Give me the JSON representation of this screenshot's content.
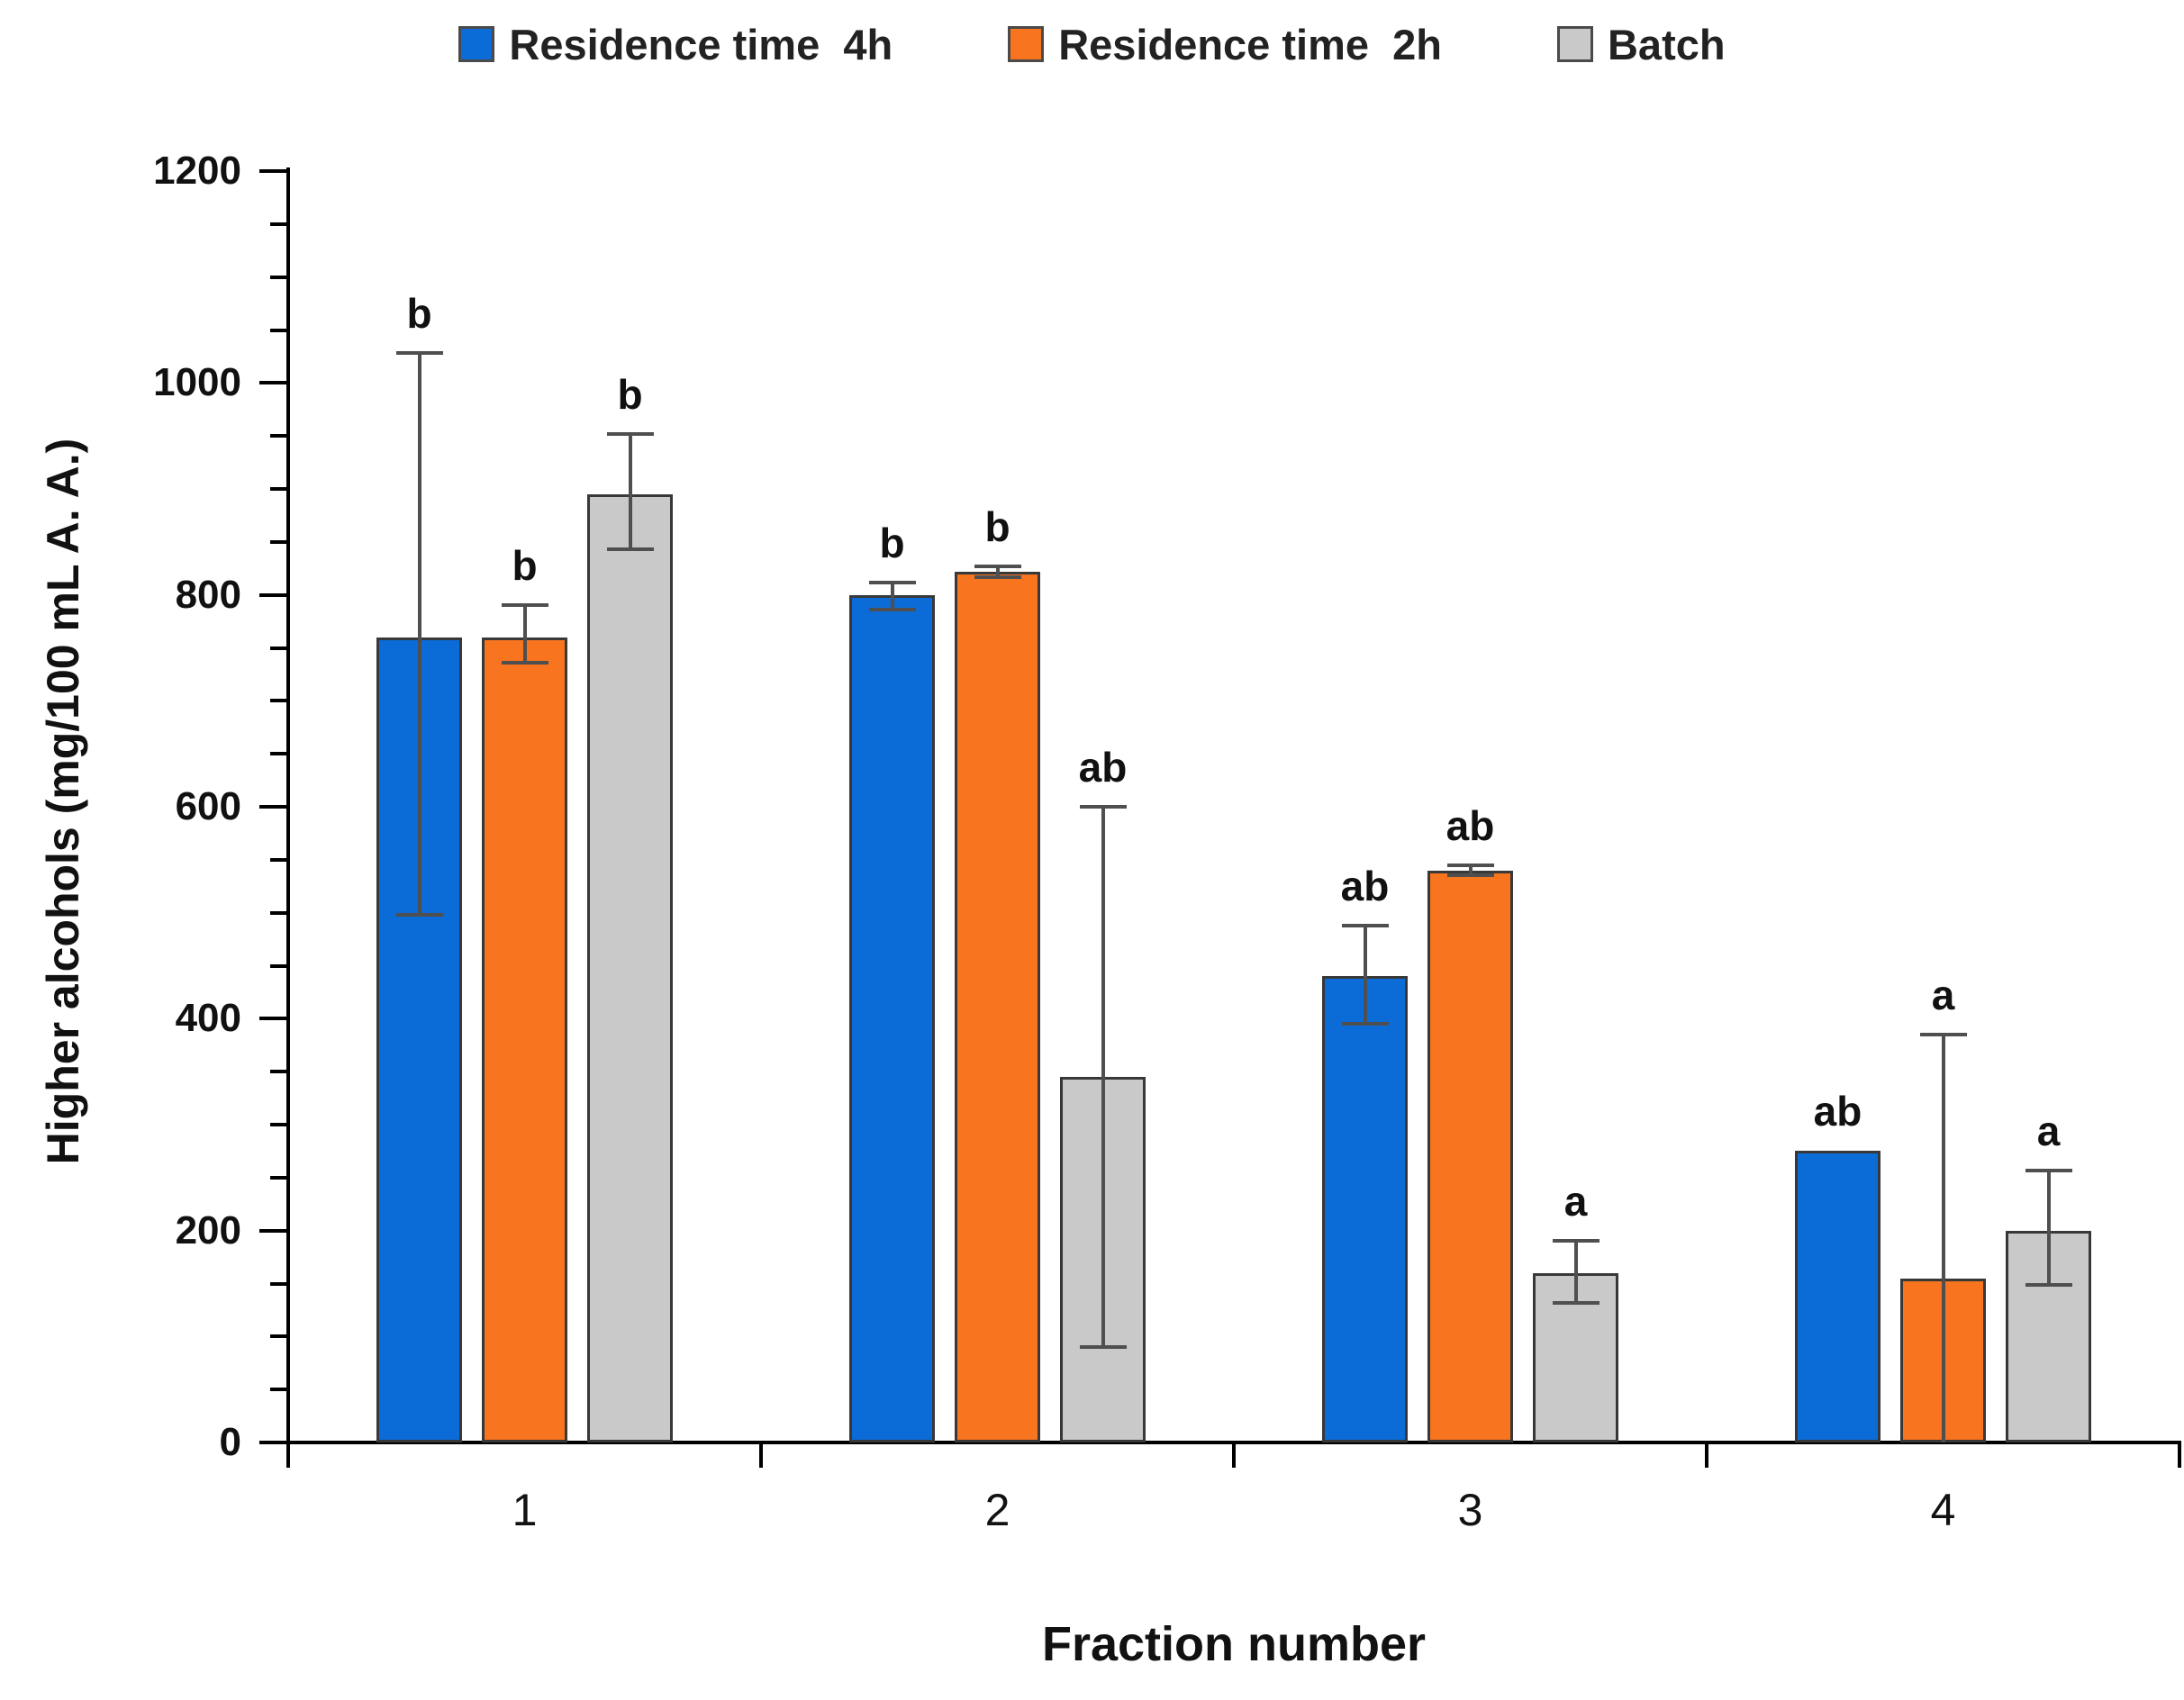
{
  "chart_data": {
    "type": "bar",
    "title": "",
    "xlabel": "Fraction number",
    "ylabel": "Higher alcohols (mg/100 mL A. A.)",
    "ylim": [
      0,
      1200
    ],
    "ytick_step": 200,
    "yminor_step": 50,
    "ytick_labels": [
      "0",
      "200",
      "400",
      "600",
      "800",
      "1000",
      "1200"
    ],
    "categories": [
      "1",
      "2",
      "3",
      "4"
    ],
    "legend_position": "top",
    "grid": false,
    "axis_color": "#000000",
    "error_bar_color": "#4f4f4f",
    "series": [
      {
        "name": "Residence time  4h",
        "color": "#0b6cd8",
        "pattern": false,
        "values": [
          760,
          800,
          440,
          275
        ],
        "err_plus": [
          268,
          12,
          48,
          0
        ],
        "err_minus": [
          262,
          14,
          45,
          0
        ],
        "sig": [
          "b",
          "b",
          "ab",
          "ab"
        ]
      },
      {
        "name": "Residence time  2h",
        "color": "#f8741f",
        "pattern": false,
        "values": [
          760,
          822,
          540,
          155
        ],
        "err_plus": [
          30,
          5,
          5,
          230
        ],
        "err_minus": [
          24,
          5,
          5,
          155
        ],
        "sig": [
          "b",
          "b",
          "ab",
          "a"
        ]
      },
      {
        "name": "Batch",
        "color": "#c9c9c9",
        "pattern": true,
        "values": [
          895,
          345,
          160,
          200
        ],
        "err_plus": [
          57,
          255,
          30,
          57
        ],
        "err_minus": [
          52,
          255,
          28,
          51
        ],
        "sig": [
          "b",
          "ab",
          "a",
          "a"
        ]
      }
    ]
  }
}
